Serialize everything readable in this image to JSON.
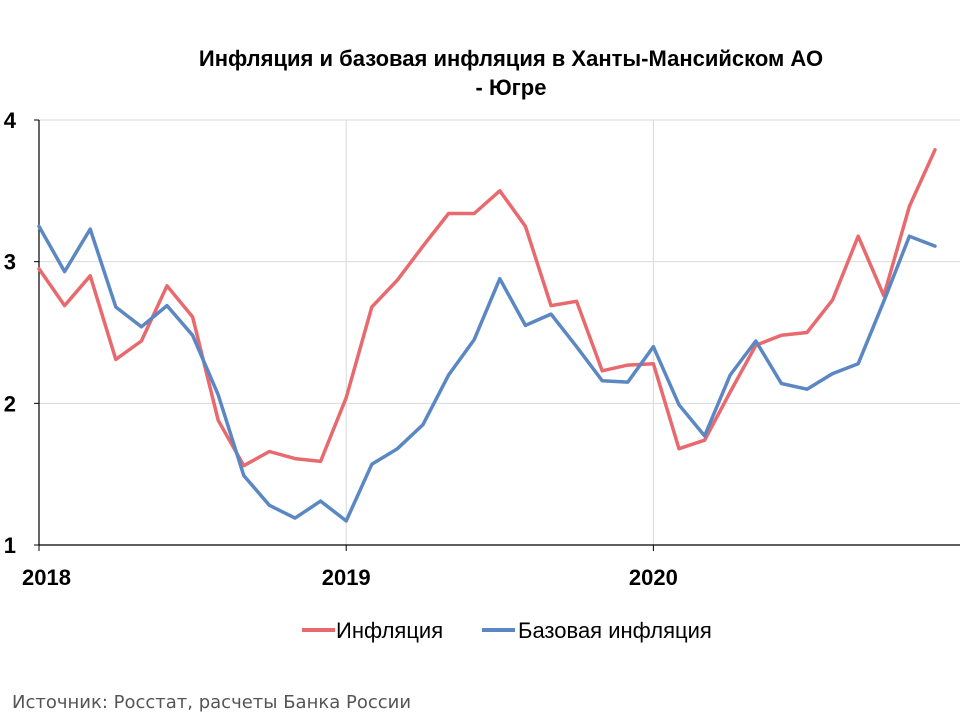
{
  "chart_data": {
    "type": "line",
    "title_lines": [
      "Инфляция и базовая инфляция в Ханты-Мансийском АО",
      "- Югре"
    ],
    "x": [
      "2018-01",
      "2018-02",
      "2018-03",
      "2018-04",
      "2018-05",
      "2018-06",
      "2018-07",
      "2018-08",
      "2018-09",
      "2018-10",
      "2018-11",
      "2018-12",
      "2019-01",
      "2019-02",
      "2019-03",
      "2019-04",
      "2019-05",
      "2019-06",
      "2019-07",
      "2019-08",
      "2019-09",
      "2019-10",
      "2019-11",
      "2019-12",
      "2020-01",
      "2020-02",
      "2020-03",
      "2020-04",
      "2020-05",
      "2020-06",
      "2020-07",
      "2020-08",
      "2020-09",
      "2020-10",
      "2020-11",
      "2020-12"
    ],
    "x_tick_labels": [
      {
        "label": "2018",
        "at": "2018-01"
      },
      {
        "label": "2019",
        "at": "2019-01"
      },
      {
        "label": "2020",
        "at": "2020-01"
      }
    ],
    "series": [
      {
        "name": "Инфляция",
        "color": "#e8696e",
        "values": [
          2.95,
          2.69,
          2.9,
          2.31,
          2.44,
          2.83,
          2.61,
          1.88,
          1.56,
          1.66,
          1.61,
          1.59,
          2.04,
          2.68,
          2.87,
          3.11,
          3.34,
          3.34,
          3.5,
          3.25,
          2.69,
          2.72,
          2.23,
          2.27,
          2.28,
          1.68,
          1.74,
          2.08,
          2.41,
          2.48,
          2.5,
          2.73,
          3.18,
          2.76,
          3.39,
          3.79
        ]
      },
      {
        "name": "Базовая инфляция",
        "color": "#5b87c3",
        "values": [
          3.25,
          2.93,
          3.23,
          2.68,
          2.54,
          2.69,
          2.48,
          2.06,
          1.49,
          1.28,
          1.19,
          1.31,
          1.17,
          1.57,
          1.68,
          1.85,
          2.2,
          2.45,
          2.88,
          2.55,
          2.63,
          2.4,
          2.16,
          2.15,
          2.4,
          1.99,
          1.77,
          2.2,
          2.44,
          2.14,
          2.1,
          2.21,
          2.28,
          2.72,
          3.18,
          3.11
        ]
      }
    ],
    "ylim": [
      1,
      4
    ],
    "y_ticks": [
      "1",
      "2",
      "3",
      "4"
    ],
    "grid": true,
    "legend_position": "bottom-center"
  },
  "footer": {
    "source": "Источник: Росстат, расчеты Банка России"
  }
}
